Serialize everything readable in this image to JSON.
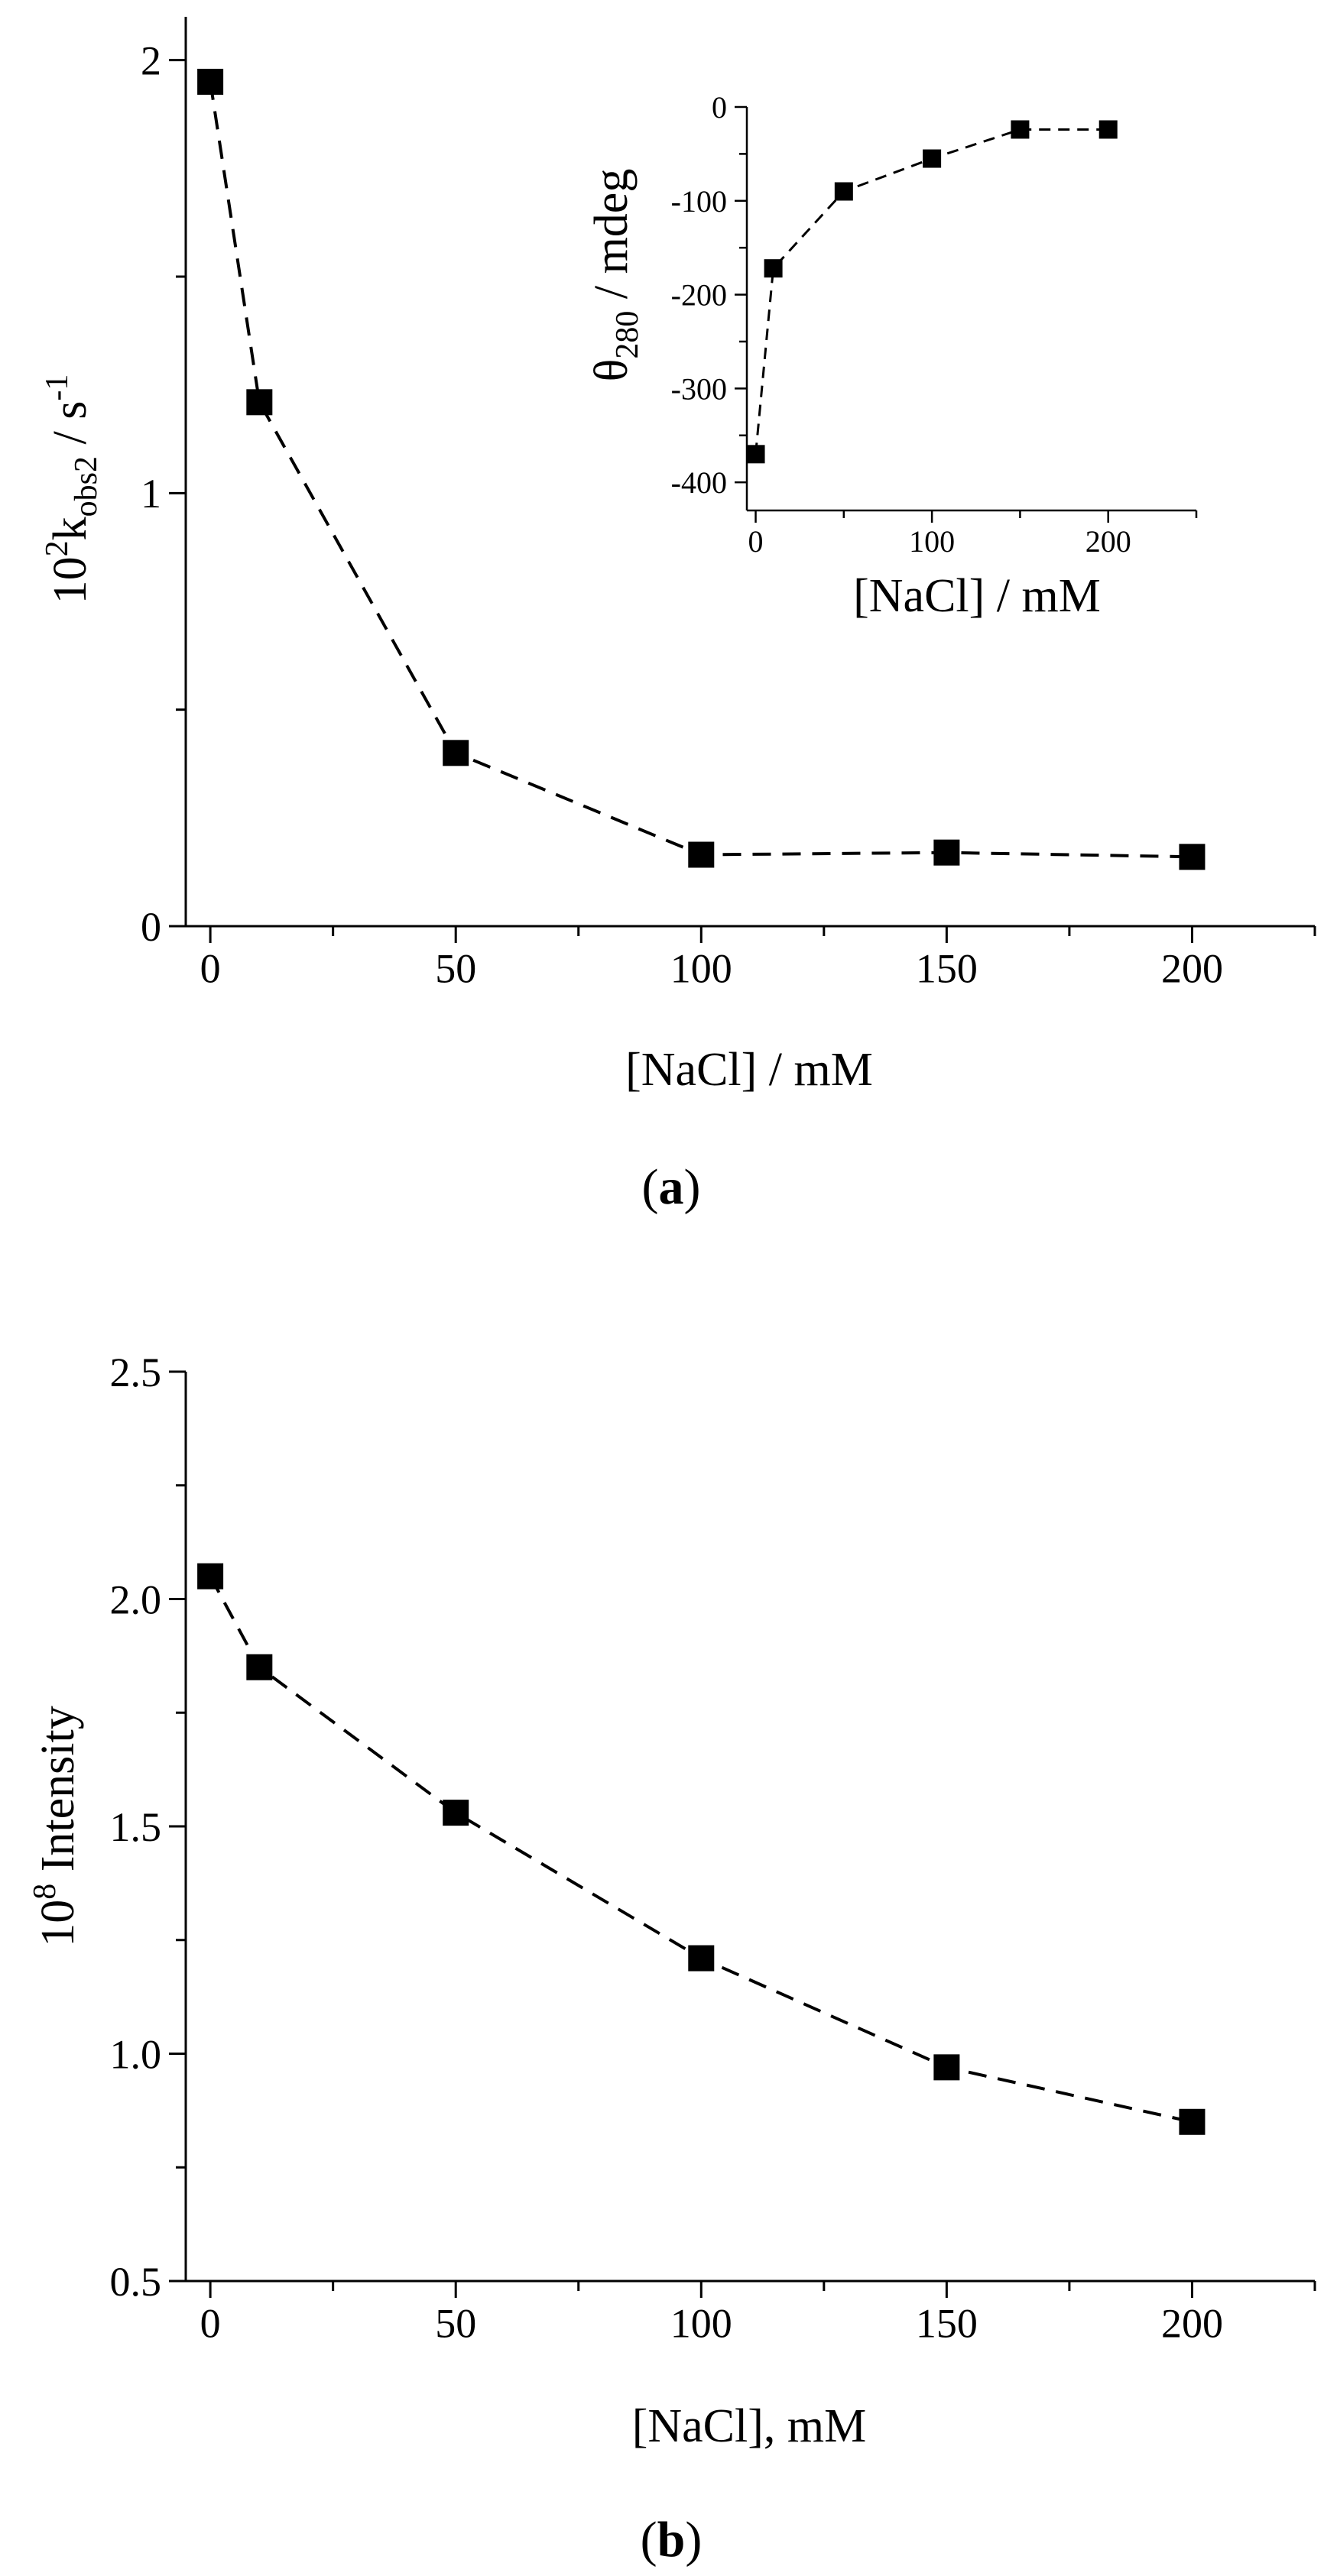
{
  "panels": [
    {
      "caption": "(a)",
      "caption_letter": "a",
      "chart_data": {
        "type": "line",
        "series": [
          {
            "x": [
              0,
              10,
              50,
              100,
              150,
              200
            ],
            "y": [
              1.95,
              1.21,
              0.4,
              0.165,
              0.17,
              0.16
            ]
          }
        ],
        "xlabel": "[NaCl] / mM",
        "ylabel": {
          "prefix": "10",
          "sup": "2",
          "k": "k",
          "sub": "obs2",
          "unit": " / s",
          "unit_sup": "-1"
        },
        "xlim": [
          -5,
          225
        ],
        "ylim": [
          0,
          2.1
        ],
        "xticks": [
          0,
          50,
          100,
          150,
          200
        ],
        "yticks": [
          0,
          1,
          2
        ],
        "line_style": "dashed",
        "marker": "square",
        "grid": false
      },
      "inset": {
        "chart_data": {
          "type": "line",
          "series": [
            {
              "x": [
                0,
                10,
                50,
                100,
                150,
                200
              ],
              "y": [
                -370,
                -172,
                -90,
                -55,
                -24,
                -24
              ]
            }
          ],
          "xlabel": "[NaCl] / mM",
          "ylabel": {
            "theta": "θ",
            "sub": "280",
            "unit": " / mdeg"
          },
          "xlim": [
            -5,
            250
          ],
          "ylim": [
            -430,
            0
          ],
          "xticks": [
            0,
            100,
            200
          ],
          "yticks": [
            0,
            -100,
            -200,
            -300,
            -400
          ],
          "line_style": "dashed",
          "marker": "square",
          "grid": false
        }
      }
    },
    {
      "caption": "(b)",
      "caption_letter": "b",
      "chart_data": {
        "type": "line",
        "series": [
          {
            "x": [
              0,
              10,
              50,
              100,
              150,
              200
            ],
            "y": [
              2.05,
              1.85,
              1.53,
              1.21,
              0.97,
              0.85
            ]
          }
        ],
        "xlabel": "[NaCl], mM",
        "ylabel": {
          "prefix": "10",
          "sup": "8",
          "rest": " Intensity"
        },
        "xlim": [
          -5,
          225
        ],
        "ylim": [
          0.5,
          2.5
        ],
        "xticks": [
          0,
          50,
          100,
          150,
          200
        ],
        "yticks": [
          0.5,
          1.0,
          1.5,
          2.0,
          2.5
        ],
        "ytick_decimals": 1,
        "line_style": "dashed",
        "marker": "square",
        "grid": false
      }
    }
  ]
}
